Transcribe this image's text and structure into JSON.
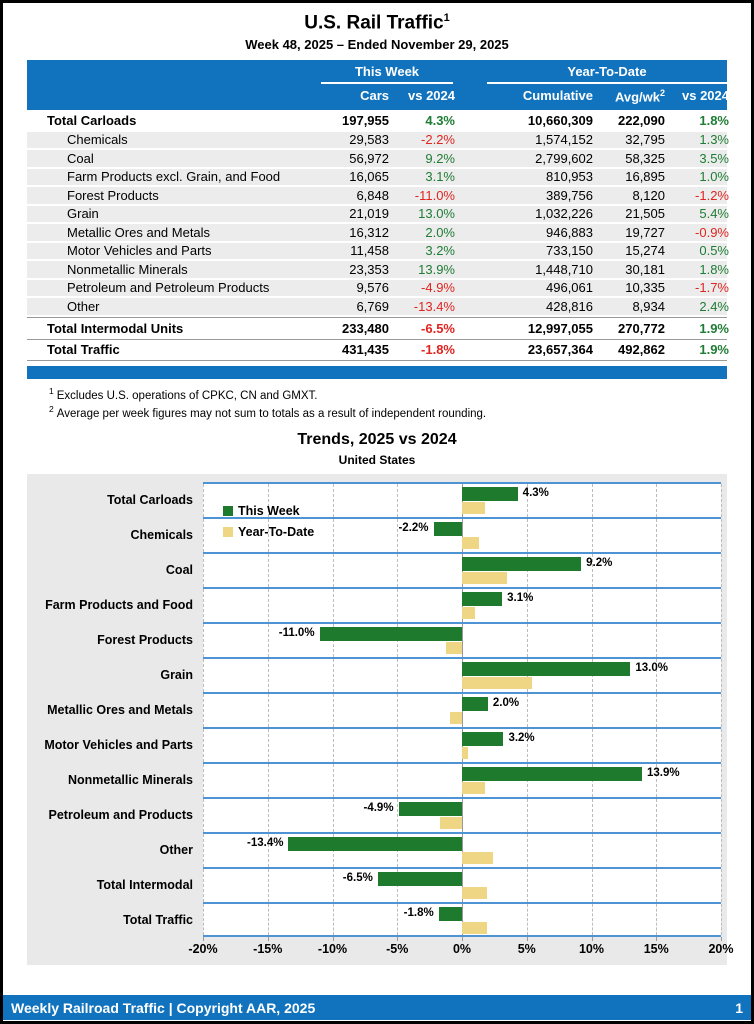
{
  "header": {
    "title": "U.S. Rail Traffic",
    "title_superscript": "1",
    "subtitle": "Week 48, 2025 – Ended November 29, 2025"
  },
  "table": {
    "group_week": "This Week",
    "group_ytd": "Year-To-Date",
    "columns": {
      "cars": "Cars",
      "vs_week": "vs 2024",
      "cumulative": "Cumulative",
      "avg_wk": "Avg/wk",
      "avg_wk_superscript": "2",
      "vs_ytd": "vs 2024"
    },
    "rows": [
      {
        "label": "Total Carloads",
        "type": "total",
        "cars": "197,955",
        "vs_week": "4.3%",
        "cumulative": "10,660,309",
        "avg_wk": "222,090",
        "vs_ytd": "1.8%"
      },
      {
        "label": "Chemicals",
        "type": "sub",
        "cars": "29,583",
        "vs_week": "-2.2%",
        "cumulative": "1,574,152",
        "avg_wk": "32,795",
        "vs_ytd": "1.3%"
      },
      {
        "label": "Coal",
        "type": "sub",
        "cars": "56,972",
        "vs_week": "9.2%",
        "cumulative": "2,799,602",
        "avg_wk": "58,325",
        "vs_ytd": "3.5%"
      },
      {
        "label": "Farm Products excl. Grain, and Food",
        "type": "sub",
        "cars": "16,065",
        "vs_week": "3.1%",
        "cumulative": "810,953",
        "avg_wk": "16,895",
        "vs_ytd": "1.0%"
      },
      {
        "label": "Forest Products",
        "type": "sub",
        "cars": "6,848",
        "vs_week": "-11.0%",
        "cumulative": "389,756",
        "avg_wk": "8,120",
        "vs_ytd": "-1.2%"
      },
      {
        "label": "Grain",
        "type": "sub",
        "cars": "21,019",
        "vs_week": "13.0%",
        "cumulative": "1,032,226",
        "avg_wk": "21,505",
        "vs_ytd": "5.4%"
      },
      {
        "label": "Metallic Ores and Metals",
        "type": "sub",
        "cars": "16,312",
        "vs_week": "2.0%",
        "cumulative": "946,883",
        "avg_wk": "19,727",
        "vs_ytd": "-0.9%"
      },
      {
        "label": "Motor Vehicles and Parts",
        "type": "sub",
        "cars": "11,458",
        "vs_week": "3.2%",
        "cumulative": "733,150",
        "avg_wk": "15,274",
        "vs_ytd": "0.5%"
      },
      {
        "label": "Nonmetallic Minerals",
        "type": "sub",
        "cars": "23,353",
        "vs_week": "13.9%",
        "cumulative": "1,448,710",
        "avg_wk": "30,181",
        "vs_ytd": "1.8%"
      },
      {
        "label": "Petroleum and Petroleum Products",
        "type": "sub",
        "cars": "9,576",
        "vs_week": "-4.9%",
        "cumulative": "496,061",
        "avg_wk": "10,335",
        "vs_ytd": "-1.7%"
      },
      {
        "label": "Other",
        "type": "sub",
        "cars": "6,769",
        "vs_week": "-13.4%",
        "cumulative": "428,816",
        "avg_wk": "8,934",
        "vs_ytd": "2.4%"
      },
      {
        "label": "Total Intermodal Units",
        "type": "total",
        "separator": true,
        "cars": "233,480",
        "vs_week": "-6.5%",
        "cumulative": "12,997,055",
        "avg_wk": "270,772",
        "vs_ytd": "1.9%"
      },
      {
        "label": "Total Traffic",
        "type": "total",
        "separator": true,
        "last": true,
        "cars": "431,435",
        "vs_week": "-1.8%",
        "cumulative": "23,657,364",
        "avg_wk": "492,862",
        "vs_ytd": "1.9%"
      }
    ]
  },
  "footnotes": [
    {
      "marker": "1",
      "text": "Excludes U.S. operations of CPKC, CN and GMXT."
    },
    {
      "marker": "2",
      "text": "Average per week figures may not sum to totals as a result of independent rounding."
    }
  ],
  "chart_data": {
    "type": "bar",
    "orientation": "horizontal",
    "title": "Trends, 2025 vs 2024",
    "subtitle": "United States",
    "xlim": [
      -20,
      20
    ],
    "x_ticks": [
      -20,
      -15,
      -10,
      -5,
      0,
      5,
      10,
      15,
      20
    ],
    "x_tick_labels": [
      "-20%",
      "-15%",
      "-10%",
      "-5%",
      "0%",
      "5%",
      "10%",
      "15%",
      "20%"
    ],
    "grid": true,
    "legend_position": "top-left-inside",
    "categories": [
      "Total Carloads",
      "Chemicals",
      "Coal",
      "Farm Products and Food",
      "Forest Products",
      "Grain",
      "Metallic Ores and Metals",
      "Motor Vehicles and Parts",
      "Nonmetallic Minerals",
      "Petroleum and Products",
      "Other",
      "Total Intermodal",
      "Total Traffic"
    ],
    "series": [
      {
        "name": "This Week",
        "color": "#1E7B2E",
        "values": [
          4.3,
          -2.2,
          9.2,
          3.1,
          -11.0,
          13.0,
          2.0,
          3.2,
          13.9,
          -4.9,
          -13.4,
          -6.5,
          -1.8
        ],
        "labels": [
          "4.3%",
          "-2.2%",
          "9.2%",
          "3.1%",
          "-11.0%",
          "13.0%",
          "2.0%",
          "3.2%",
          "13.9%",
          "-4.9%",
          "-13.4%",
          "-6.5%",
          "-1.8%"
        ]
      },
      {
        "name": "Year-To-Date",
        "color": "#EFD684",
        "values": [
          1.8,
          1.3,
          3.5,
          1.0,
          -1.2,
          5.4,
          -0.9,
          0.5,
          1.8,
          -1.7,
          2.4,
          1.9,
          1.9
        ],
        "labels": []
      }
    ]
  },
  "footer": {
    "left_text": "Weekly Railroad Traffic | Copyright AAR, 2025",
    "page_number": "1"
  },
  "colors": {
    "header_blue": "#1173BE",
    "band_line_blue": "#4E94D4",
    "bar_green": "#1E7B2E",
    "bar_yellow": "#EFD684",
    "positive_text": "#1E7C34",
    "negative_text": "#E02420",
    "row_gray": "#ECECEC",
    "chart_background": "#E9E9E9"
  }
}
